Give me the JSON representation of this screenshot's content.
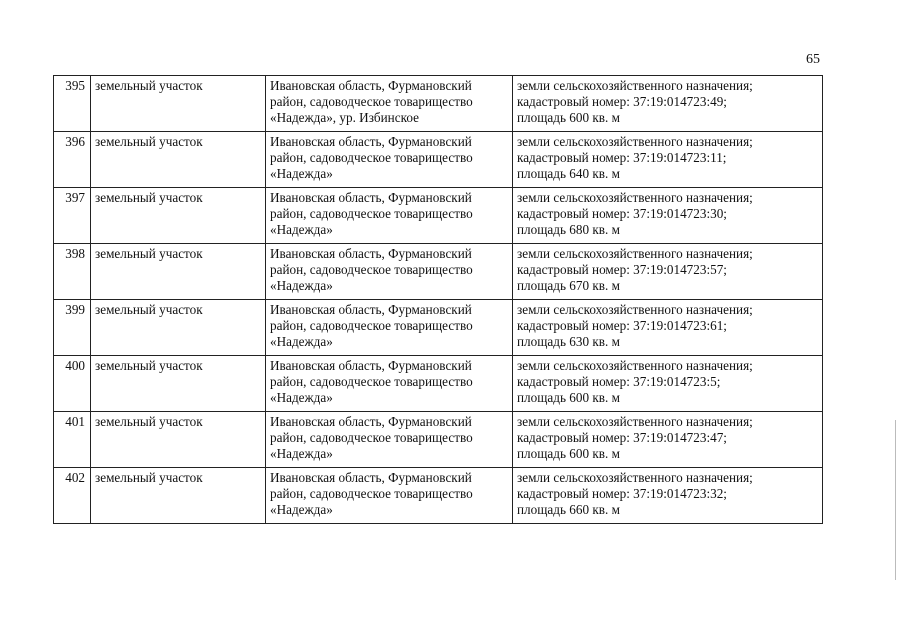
{
  "page_number": "65",
  "rows": [
    {
      "num": "395",
      "type": "земельный участок",
      "address": [
        "Ивановская область, Фурмановский",
        "район, садоводческое товарищество",
        "«Надежда», ур. Избинское"
      ],
      "details": [
        "земли сельскохозяйственного назначения;",
        "кадастровый номер: 37:19:014723:49;",
        "площадь 600 кв. м"
      ]
    },
    {
      "num": "396",
      "type": "земельный участок",
      "address": [
        "Ивановская область, Фурмановский",
        "район, садоводческое товарищество",
        "«Надежда»"
      ],
      "details": [
        "земли сельскохозяйственного назначения;",
        "кадастровый номер: 37:19:014723:11;",
        "площадь 640 кв. м"
      ]
    },
    {
      "num": "397",
      "type": "земельный участок",
      "address": [
        "Ивановская область, Фурмановский",
        "район, садоводческое товарищество",
        "«Надежда»"
      ],
      "details": [
        "земли сельскохозяйственного назначения;",
        "кадастровый номер: 37:19:014723:30;",
        "площадь 680 кв. м"
      ]
    },
    {
      "num": "398",
      "type": "земельный участок",
      "address": [
        "Ивановская область, Фурмановский",
        "район, садоводческое товарищество",
        "«Надежда»"
      ],
      "details": [
        "земли сельскохозяйственного назначения;",
        "кадастровый номер: 37:19:014723:57;",
        "площадь 670 кв. м"
      ]
    },
    {
      "num": "399",
      "type": "земельный участок",
      "address": [
        "Ивановская область, Фурмановский",
        "район, садоводческое товарищество",
        "«Надежда»"
      ],
      "details": [
        "земли сельскохозяйственного назначения;",
        "кадастровый номер: 37:19:014723:61;",
        "площадь 630 кв. м"
      ]
    },
    {
      "num": "400",
      "type": "земельный участок",
      "address": [
        "Ивановская область, Фурмановский",
        "район, садоводческое товарищество",
        "«Надежда»"
      ],
      "details": [
        "земли сельскохозяйственного назначения;",
        "кадастровый номер: 37:19:014723:5;",
        "площадь 600 кв. м"
      ]
    },
    {
      "num": "401",
      "type": "земельный участок",
      "address": [
        "Ивановская область, Фурмановский",
        "район, садоводческое товарищество",
        "«Надежда»"
      ],
      "details": [
        "земли сельскохозяйственного назначения;",
        "кадастровый номер: 37:19:014723:47;",
        "площадь 600 кв. м"
      ]
    },
    {
      "num": "402",
      "type": "земельный участок",
      "address": [
        "Ивановская область, Фурмановский",
        "район, садоводческое товарищество",
        "«Надежда»"
      ],
      "details": [
        "земли сельскохозяйственного назначения;",
        "кадастровый номер: 37:19:014723:32;",
        "площадь 660 кв. м"
      ]
    }
  ]
}
